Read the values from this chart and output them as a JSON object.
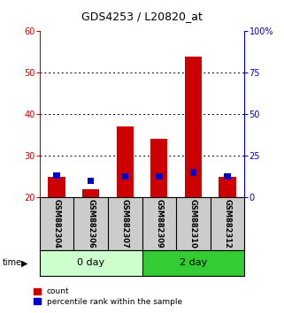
{
  "title": "GDS4253 / L20820_at",
  "samples": [
    "GSM882304",
    "GSM882306",
    "GSM882307",
    "GSM882309",
    "GSM882310",
    "GSM882312"
  ],
  "red_values": [
    25.0,
    22.0,
    37.0,
    34.0,
    54.0,
    25.0
  ],
  "blue_values": [
    25.2,
    24.0,
    25.0,
    25.0,
    26.0,
    25.0
  ],
  "bar_bottom": 20,
  "left_ylim": [
    20,
    60
  ],
  "right_ylim": [
    0,
    100
  ],
  "left_yticks": [
    20,
    30,
    40,
    50,
    60
  ],
  "right_yticks": [
    0,
    25,
    50,
    75,
    100
  ],
  "right_yticklabels": [
    "0",
    "25",
    "50",
    "75",
    "100%"
  ],
  "left_color": "#cc0000",
  "right_color": "#0000cc",
  "red_bar_color": "#cc0000",
  "blue_bar_color": "#0000cc",
  "group_bg_0day": "#ccffcc",
  "group_bg_2day": "#33cc33",
  "sample_bg": "#cccccc",
  "legend_red": "count",
  "legend_blue": "percentile rank within the sample",
  "title_fontsize": 9,
  "tick_fontsize": 7,
  "sample_fontsize": 6,
  "group_fontsize": 8
}
